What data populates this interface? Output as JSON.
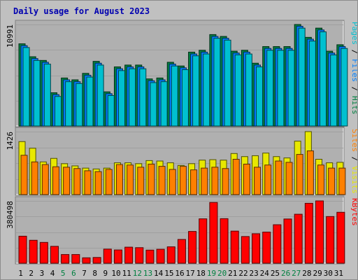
{
  "title": "Daily usage for August 2023",
  "colors": {
    "frame_bg": "#c0c0c0",
    "plot_bg": "#b0b0b0",
    "title": "#0000b0",
    "hits": "#008040",
    "files": "#0080ff",
    "pages": "#00c0d0",
    "visits": "#e8e800",
    "sites": "#ff8000",
    "kbytes": "#ff0000",
    "weekend_label": "#008040"
  },
  "panels": {
    "top": {
      "ymax_label": "10991",
      "legend": [
        {
          "text": "Pages",
          "color_key": "pages"
        },
        {
          "text": "Files",
          "color_key": "files"
        },
        {
          "text": "Hits",
          "color_key": "hits"
        }
      ]
    },
    "mid": {
      "ymax_label": "1426",
      "legend": [
        {
          "text": "Sites",
          "color_key": "sites"
        },
        {
          "text": "Visits",
          "color_key": "visits"
        }
      ]
    },
    "bot": {
      "ymax_label": "380498",
      "legend": [
        {
          "text": "KBytes",
          "color_key": "kbytes"
        }
      ]
    }
  },
  "chart_data": [
    {
      "type": "bar",
      "title": "Daily usage for August 2023",
      "categories": [
        "1",
        "2",
        "3",
        "4",
        "5",
        "6",
        "7",
        "8",
        "9",
        "10",
        "11",
        "12",
        "13",
        "14",
        "15",
        "16",
        "17",
        "18",
        "19",
        "20",
        "21",
        "22",
        "23",
        "24",
        "25",
        "26",
        "27",
        "28",
        "29",
        "30",
        "31"
      ],
      "weekend_days": [
        "5",
        "6",
        "12",
        "13",
        "19",
        "20",
        "26",
        "27"
      ],
      "ylim": [
        0,
        10991
      ],
      "series": [
        {
          "name": "Hits",
          "values": [
            8900,
            7500,
            7100,
            3600,
            5200,
            5000,
            5700,
            7000,
            3700,
            6400,
            6600,
            6600,
            5100,
            5200,
            6900,
            6500,
            8000,
            8200,
            9900,
            9700,
            8100,
            8200,
            6800,
            8600,
            8600,
            8600,
            10991,
            9600,
            10600,
            8100,
            8800
          ]
        },
        {
          "name": "Files",
          "values": [
            8700,
            7300,
            6900,
            3400,
            5000,
            4800,
            5500,
            6800,
            3500,
            6200,
            6400,
            6400,
            4900,
            5000,
            6700,
            6300,
            7800,
            8000,
            9700,
            9500,
            7900,
            8000,
            6600,
            8400,
            8400,
            8400,
            10800,
            9400,
            10400,
            7900,
            8600
          ]
        },
        {
          "name": "Pages",
          "values": [
            8500,
            7100,
            6700,
            3200,
            4800,
            4600,
            5300,
            6600,
            3300,
            6000,
            6200,
            6200,
            4700,
            4800,
            6500,
            6100,
            7600,
            7800,
            9500,
            9300,
            7700,
            7800,
            6400,
            8200,
            8200,
            8200,
            10600,
            9200,
            10200,
            7700,
            8400
          ]
        }
      ]
    },
    {
      "type": "bar",
      "categories": [
        "1",
        "2",
        "3",
        "4",
        "5",
        "6",
        "7",
        "8",
        "9",
        "10",
        "11",
        "12",
        "13",
        "14",
        "15",
        "16",
        "17",
        "18",
        "19",
        "20",
        "21",
        "22",
        "23",
        "24",
        "25",
        "26",
        "27",
        "28",
        "29",
        "30",
        "31"
      ],
      "ylim": [
        0,
        1426
      ],
      "series": [
        {
          "name": "Visits",
          "values": [
            1200,
            1050,
            740,
            820,
            700,
            650,
            600,
            580,
            600,
            720,
            720,
            700,
            770,
            760,
            720,
            660,
            700,
            780,
            790,
            780,
            930,
            860,
            880,
            940,
            860,
            830,
            1210,
            1426,
            800,
            720,
            730
          ]
        },
        {
          "name": "Sites",
          "values": [
            890,
            740,
            680,
            630,
            620,
            590,
            540,
            520,
            570,
            680,
            670,
            620,
            690,
            640,
            570,
            640,
            560,
            600,
            620,
            590,
            800,
            690,
            620,
            670,
            760,
            730,
            910,
            990,
            670,
            600,
            600
          ]
        }
      ]
    },
    {
      "type": "bar",
      "categories": [
        "1",
        "2",
        "3",
        "4",
        "5",
        "6",
        "7",
        "8",
        "9",
        "10",
        "11",
        "12",
        "13",
        "14",
        "15",
        "16",
        "17",
        "18",
        "19",
        "20",
        "21",
        "22",
        "23",
        "24",
        "25",
        "26",
        "27",
        "28",
        "29",
        "30",
        "31"
      ],
      "ylim": [
        0,
        380498
      ],
      "series": [
        {
          "name": "KBytes",
          "values": [
            165000,
            140000,
            127000,
            103000,
            53000,
            53000,
            33000,
            35000,
            86000,
            81000,
            98000,
            95000,
            80000,
            85000,
            100000,
            145000,
            194000,
            271000,
            371000,
            272000,
            196000,
            163000,
            180000,
            190000,
            235000,
            270000,
            299000,
            366000,
            380498,
            285000,
            311000
          ]
        }
      ]
    }
  ]
}
